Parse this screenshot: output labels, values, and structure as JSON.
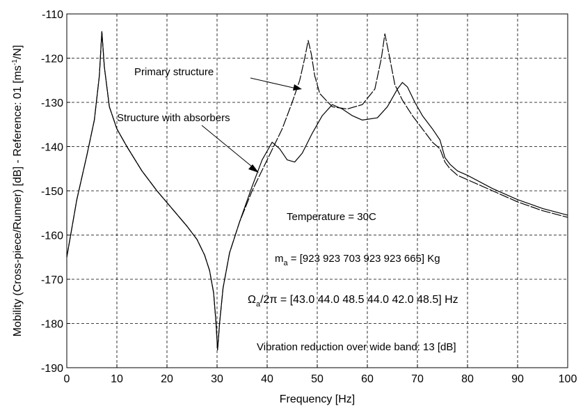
{
  "chart_data": {
    "type": "line",
    "xlabel": "Frequency [Hz]",
    "ylabel": "Mobility (Cross-piece/Runner) [dB] - Reference: 01 [ms",
    "ylabel_sup": "-1",
    "ylabel_end": "/N]",
    "xlim": [
      0,
      100
    ],
    "ylim": [
      -190,
      -110
    ],
    "xticks": [
      0,
      10,
      20,
      30,
      40,
      50,
      60,
      70,
      80,
      90,
      100
    ],
    "yticks": [
      -190,
      -180,
      -170,
      -160,
      -150,
      -140,
      -130,
      -120,
      -110
    ],
    "grid": true,
    "series": [
      {
        "name": "Primary structure",
        "points": [
          [
            0,
            -165
          ],
          [
            2,
            -152
          ],
          [
            4,
            -142
          ],
          [
            5.5,
            -134
          ],
          [
            6.5,
            -124
          ],
          [
            7,
            -114
          ],
          [
            7.5,
            -122
          ],
          [
            8.5,
            -131
          ],
          [
            10,
            -136
          ],
          [
            12,
            -140
          ],
          [
            15,
            -145.5
          ],
          [
            18,
            -150
          ],
          [
            21,
            -154
          ],
          [
            24,
            -158
          ],
          [
            26,
            -161
          ],
          [
            27.5,
            -164.5
          ],
          [
            28.5,
            -168
          ],
          [
            29.3,
            -173
          ],
          [
            29.8,
            -180
          ],
          [
            30.1,
            -186
          ],
          [
            30.5,
            -180
          ],
          [
            31.2,
            -172
          ],
          [
            32.5,
            -164
          ],
          [
            34.5,
            -157
          ],
          [
            37,
            -150
          ],
          [
            40,
            -143
          ],
          [
            43,
            -136
          ],
          [
            45,
            -130
          ],
          [
            46.5,
            -125
          ],
          [
            47.5,
            -120
          ],
          [
            48.2,
            -116
          ],
          [
            48.8,
            -119
          ],
          [
            49.5,
            -124
          ],
          [
            50.5,
            -128
          ],
          [
            53,
            -131
          ],
          [
            56,
            -131.5
          ],
          [
            59,
            -130.5
          ],
          [
            61.5,
            -127
          ],
          [
            62.8,
            -120
          ],
          [
            63.5,
            -114.5
          ],
          [
            64.3,
            -119
          ],
          [
            65.5,
            -126
          ],
          [
            67,
            -129.5
          ],
          [
            69,
            -133
          ],
          [
            71,
            -136
          ],
          [
            73,
            -139
          ],
          [
            74.5,
            -140.5
          ],
          [
            75.5,
            -143.5
          ],
          [
            76.5,
            -145
          ],
          [
            77.5,
            -146
          ],
          [
            78,
            -146.5
          ],
          [
            80,
            -147.5
          ],
          [
            85,
            -150
          ],
          [
            90,
            -152.5
          ],
          [
            95,
            -154.5
          ],
          [
            100,
            -156
          ]
        ]
      },
      {
        "name": "Structure with absorbers",
        "points": [
          [
            0,
            -165
          ],
          [
            2,
            -152
          ],
          [
            4,
            -142
          ],
          [
            5.5,
            -134
          ],
          [
            6.5,
            -124
          ],
          [
            7,
            -114
          ],
          [
            7.5,
            -122
          ],
          [
            8.5,
            -131
          ],
          [
            10,
            -136
          ],
          [
            12,
            -140
          ],
          [
            15,
            -145.5
          ],
          [
            18,
            -150
          ],
          [
            21,
            -154
          ],
          [
            24,
            -158
          ],
          [
            26,
            -161
          ],
          [
            27.5,
            -164.5
          ],
          [
            28.5,
            -168
          ],
          [
            29.3,
            -173
          ],
          [
            29.8,
            -180
          ],
          [
            30.1,
            -186
          ],
          [
            30.5,
            -180
          ],
          [
            31.2,
            -172
          ],
          [
            32.5,
            -164
          ],
          [
            34.5,
            -157
          ],
          [
            37,
            -149
          ],
          [
            39,
            -143
          ],
          [
            41,
            -139
          ],
          [
            42.5,
            -140.5
          ],
          [
            44,
            -143
          ],
          [
            45.5,
            -143.5
          ],
          [
            47,
            -141.5
          ],
          [
            49,
            -137
          ],
          [
            51,
            -133
          ],
          [
            53,
            -130.5
          ],
          [
            55,
            -131.5
          ],
          [
            57,
            -133
          ],
          [
            59,
            -134
          ],
          [
            62,
            -133.5
          ],
          [
            64,
            -131
          ],
          [
            66,
            -127
          ],
          [
            67,
            -125.5
          ],
          [
            68,
            -126.5
          ],
          [
            69.5,
            -130
          ],
          [
            71,
            -133
          ],
          [
            73,
            -136
          ],
          [
            74.5,
            -138.5
          ],
          [
            75.5,
            -142.5
          ],
          [
            76.5,
            -144
          ],
          [
            78,
            -145.5
          ],
          [
            80,
            -146.5
          ],
          [
            85,
            -149.5
          ],
          [
            90,
            -152
          ],
          [
            95,
            -154
          ],
          [
            100,
            -155.5
          ]
        ]
      }
    ],
    "annotations": {
      "primary": "Primary structure",
      "absorbers": "Structure with absorbers",
      "temperature": "Temperature = 30C",
      "mass_m": "m",
      "mass_sub": "a",
      "mass_val": " = [923 923 703 923 923 665] Kg",
      "omega_sym": "Ω",
      "omega_sub": "a",
      "omega_val": "/2π = [43.0  44.0  48.5  44.0  42.0  48.5] Hz",
      "reduction": "Vibration reduction over wide band:  13 [dB]"
    }
  }
}
